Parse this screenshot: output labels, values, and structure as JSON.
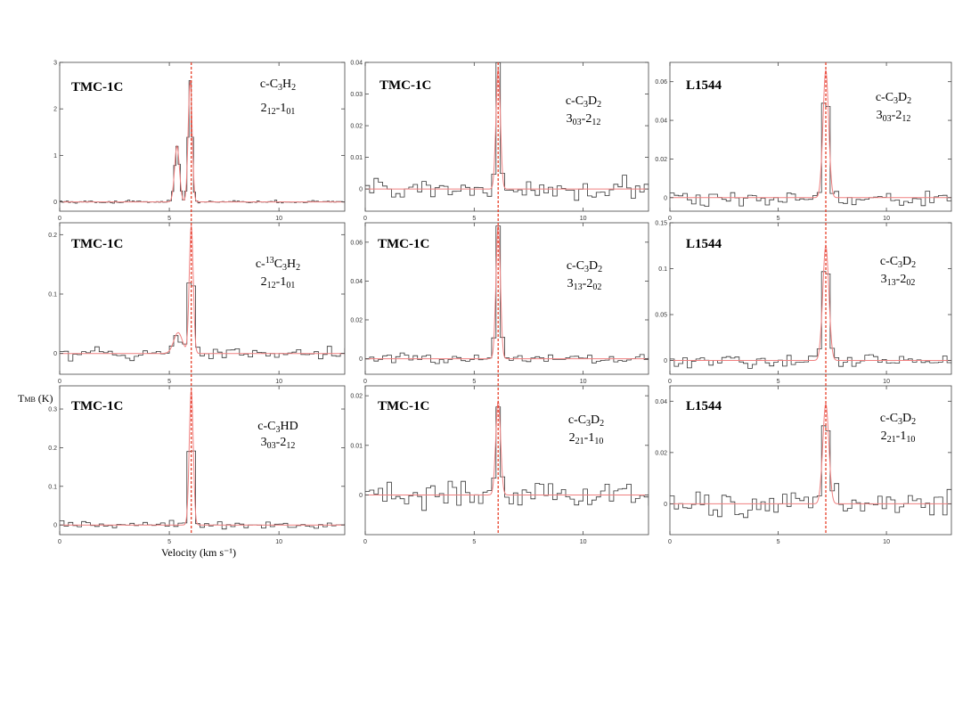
{
  "figure": {
    "xlabel": "Velocity (km s⁻¹)",
    "ylabel_main": "T",
    "ylabel_sub": "MB",
    "ylabel_unit": " (K)"
  },
  "colors": {
    "spectrum": "#333333",
    "fit": "#f08080",
    "vlsr_marker": "#e8402a",
    "frame": "#444444"
  },
  "chart_data": [
    {
      "type": "line",
      "source": "TMC-1C",
      "species": {
        "pre": "c-C",
        "s1": "3",
        "mid": "H",
        "s2": "2",
        "sup": ""
      },
      "transition": {
        "a": "2",
        "a_sub": "12",
        "mid": "-1",
        "b_sub": "01"
      },
      "xlim": [
        0,
        13
      ],
      "ylim": [
        -0.2,
        3
      ],
      "xticks": [
        "0",
        "5",
        "10"
      ],
      "xtick_values": [
        0,
        5,
        10
      ],
      "yticks": [
        "0",
        "1",
        "2",
        "3"
      ],
      "ytick_values": [
        0,
        1,
        2,
        3
      ],
      "vlsr": 6.0,
      "channel_width": 0.1,
      "noise": 0.02,
      "peaks": [
        {
          "center": 5.35,
          "amp": 1.2,
          "sigma": 0.11
        },
        {
          "center": 5.95,
          "amp": 2.6,
          "sigma": 0.09
        }
      ],
      "dip": {
        "center": 5.6,
        "depth": 0.0
      }
    },
    {
      "type": "line",
      "source": "TMC-1C",
      "species": {
        "pre": "c-C",
        "s1": "3",
        "mid": "D",
        "s2": "2",
        "sup": ""
      },
      "transition": {
        "a": "3",
        "a_sub": "03",
        "mid": "-2",
        "b_sub": "12"
      },
      "xlim": [
        0,
        13
      ],
      "ylim": [
        -0.007,
        0.04
      ],
      "xticks": [
        "0",
        "5",
        "10"
      ],
      "xtick_values": [
        0,
        5,
        10
      ],
      "yticks": [
        "0",
        "0.01",
        "0.02",
        "0.03",
        "0.04"
      ],
      "ytick_values": [
        0,
        0.01,
        0.02,
        0.03,
        0.04
      ],
      "vlsr": 6.1,
      "channel_width": 0.2,
      "noise": 0.0028,
      "peaks": [
        {
          "center": 6.1,
          "amp": 0.038,
          "sigma": 0.1
        }
      ]
    },
    {
      "type": "line",
      "source": "L1544",
      "species": {
        "pre": "c-C",
        "s1": "3",
        "mid": "D",
        "s2": "2",
        "sup": ""
      },
      "transition": {
        "a": "3",
        "a_sub": "03",
        "mid": "-2",
        "b_sub": "12"
      },
      "xlim": [
        0,
        13
      ],
      "ylim": [
        -0.007,
        0.07
      ],
      "xticks": [
        "0",
        "5",
        "10"
      ],
      "xtick_values": [
        0,
        5,
        10
      ],
      "yticks": [
        "0",
        "0.02",
        "0.04",
        "0.06"
      ],
      "ytick_values": [
        0,
        0.02,
        0.04,
        0.06
      ],
      "vlsr": 7.2,
      "channel_width": 0.2,
      "noise": 0.003,
      "peaks": [
        {
          "center": 7.2,
          "amp": 0.066,
          "sigma": 0.13
        }
      ]
    },
    {
      "type": "line",
      "source": "TMC-1C",
      "species": {
        "pre": "c-",
        "sup": "13",
        "s1": "",
        "mid": "C",
        "s2": "3",
        "tail": "H",
        "s3": "2"
      },
      "transition": {
        "a": "2",
        "a_sub": "12",
        "mid": "-1",
        "b_sub": "01"
      },
      "xlim": [
        0,
        13
      ],
      "ylim": [
        -0.035,
        0.22
      ],
      "xticks": [
        "0",
        "5",
        "10"
      ],
      "xtick_values": [
        0,
        5,
        10
      ],
      "yticks": [
        "0",
        "0.1",
        "0.2"
      ],
      "ytick_values": [
        0,
        0.1,
        0.2
      ],
      "vlsr": 6.0,
      "channel_width": 0.2,
      "noise": 0.009,
      "peaks": [
        {
          "center": 6.0,
          "amp": 0.215,
          "sigma": 0.09
        },
        {
          "center": 5.4,
          "amp": 0.035,
          "sigma": 0.2
        }
      ]
    },
    {
      "type": "line",
      "source": "TMC-1C",
      "species": {
        "pre": "c-C",
        "s1": "3",
        "mid": "D",
        "s2": "2",
        "sup": ""
      },
      "transition": {
        "a": "3",
        "a_sub": "13",
        "mid": "-2",
        "b_sub": "02"
      },
      "xlim": [
        0,
        13
      ],
      "ylim": [
        -0.008,
        0.07
      ],
      "xticks": [
        "0",
        "5",
        "10"
      ],
      "xtick_values": [
        0,
        5,
        10
      ],
      "yticks": [
        "0",
        "0.02",
        "0.04",
        "0.06"
      ],
      "ytick_values": [
        0,
        0.02,
        0.04,
        0.06
      ],
      "vlsr": 6.1,
      "channel_width": 0.2,
      "noise": 0.002,
      "peaks": [
        {
          "center": 6.1,
          "amp": 0.069,
          "sigma": 0.1
        }
      ]
    },
    {
      "type": "line",
      "source": "L1544",
      "species": {
        "pre": "c-C",
        "s1": "3",
        "mid": "D",
        "s2": "2",
        "sup": ""
      },
      "transition": {
        "a": "3",
        "a_sub": "13",
        "mid": "-2",
        "b_sub": "02"
      },
      "xlim": [
        0,
        13
      ],
      "ylim": [
        -0.015,
        0.15
      ],
      "xticks": [
        "0",
        "5",
        "10"
      ],
      "xtick_values": [
        0,
        5,
        10
      ],
      "yticks": [
        "0",
        "0.05",
        "0.1",
        "0.15"
      ],
      "ytick_values": [
        0,
        0.05,
        0.1,
        0.15
      ],
      "vlsr": 7.2,
      "channel_width": 0.2,
      "noise": 0.005,
      "peaks": [
        {
          "center": 7.2,
          "amp": 0.125,
          "sigma": 0.14
        }
      ]
    },
    {
      "type": "line",
      "source": "TMC-1C",
      "species": {
        "pre": "c-C",
        "s1": "3",
        "mid": "HD",
        "s2": "",
        "sup": ""
      },
      "transition": {
        "a": "3",
        "a_sub": "03",
        "mid": "-2",
        "b_sub": "12"
      },
      "xlim": [
        0,
        13
      ],
      "ylim": [
        -0.025,
        0.36
      ],
      "xticks": [
        "0",
        "5",
        "10"
      ],
      "xtick_values": [
        0,
        5,
        10
      ],
      "yticks": [
        "0",
        "0.1",
        "0.2",
        "0.3"
      ],
      "ytick_values": [
        0,
        0.1,
        0.2,
        0.3
      ],
      "vlsr": 6.0,
      "channel_width": 0.2,
      "noise": 0.007,
      "peaks": [
        {
          "center": 6.0,
          "amp": 0.35,
          "sigma": 0.09
        }
      ]
    },
    {
      "type": "line",
      "source": "TMC-1C",
      "species": {
        "pre": "c-C",
        "s1": "3",
        "mid": "D",
        "s2": "2",
        "sup": ""
      },
      "transition": {
        "a": "2",
        "a_sub": "21",
        "mid": "-1",
        "b_sub": "10"
      },
      "xlim": [
        0,
        13
      ],
      "ylim": [
        -0.008,
        0.022
      ],
      "xticks": [
        "0",
        "5",
        "10"
      ],
      "xtick_values": [
        0,
        5,
        10
      ],
      "yticks": [
        "0",
        "0.01",
        "0.02"
      ],
      "ytick_values": [
        0,
        0.01,
        0.02
      ],
      "vlsr": 6.1,
      "channel_width": 0.2,
      "noise": 0.0025,
      "peaks": [
        {
          "center": 6.1,
          "amp": 0.019,
          "sigma": 0.11
        }
      ]
    },
    {
      "type": "line",
      "source": "L1544",
      "species": {
        "pre": "c-C",
        "s1": "3",
        "mid": "D",
        "s2": "2",
        "sup": ""
      },
      "transition": {
        "a": "2",
        "a_sub": "21",
        "mid": "-1",
        "b_sub": "10"
      },
      "xlim": [
        0,
        13
      ],
      "ylim": [
        -0.012,
        0.046
      ],
      "xticks": [
        "0",
        "5",
        "10"
      ],
      "xtick_values": [
        0,
        5,
        10
      ],
      "yticks": [
        "0",
        "0.02",
        "0.04"
      ],
      "ytick_values": [
        0,
        0.02,
        0.04
      ],
      "vlsr": 7.2,
      "channel_width": 0.2,
      "noise": 0.0045,
      "peaks": [
        {
          "center": 7.2,
          "amp": 0.039,
          "sigma": 0.14
        }
      ]
    }
  ]
}
